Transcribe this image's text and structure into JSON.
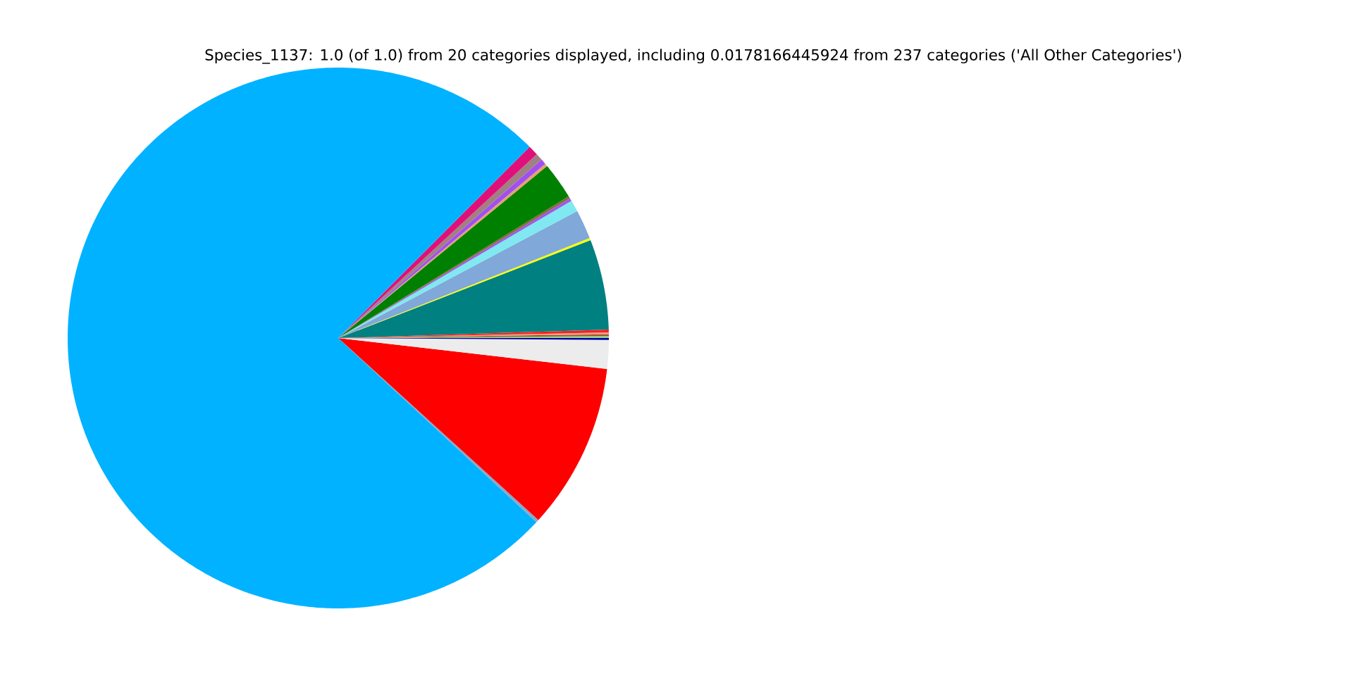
{
  "chart_data": {
    "type": "pie",
    "title": "Species_1137: 1.0 (of 1.0) from 20 categories displayed, including 0.0178166445924 from 237 categories ('All Other Categories')",
    "categories": [
      null,
      null,
      null,
      null,
      null,
      null,
      null,
      null,
      null,
      null,
      null,
      null,
      null,
      null,
      null,
      null,
      null,
      null,
      null,
      null
    ],
    "values": [
      0.11,
      0.11,
      0.11,
      0.17,
      5.39,
      0.14,
      1.75,
      0.69,
      0.17,
      0.14,
      2.19,
      0.17,
      0.33,
      0.42,
      0.61,
      75.58,
      0.17,
      9.92,
      1.72,
      0.11
    ],
    "colors": [
      "#90d890",
      "#a0522d",
      "#e8a080",
      "#ff2020",
      "#008080",
      "#ffff00",
      "#80a8d8",
      "#80e8f0",
      "#9b59e8",
      "#8b6a3a",
      "#008000",
      "#e8a070",
      "#a050f0",
      "#a08080",
      "#e0107a",
      "#00b2ff",
      "#8aa8c8",
      "#ff0000",
      "#ececec",
      "#0000a0"
    ]
  }
}
